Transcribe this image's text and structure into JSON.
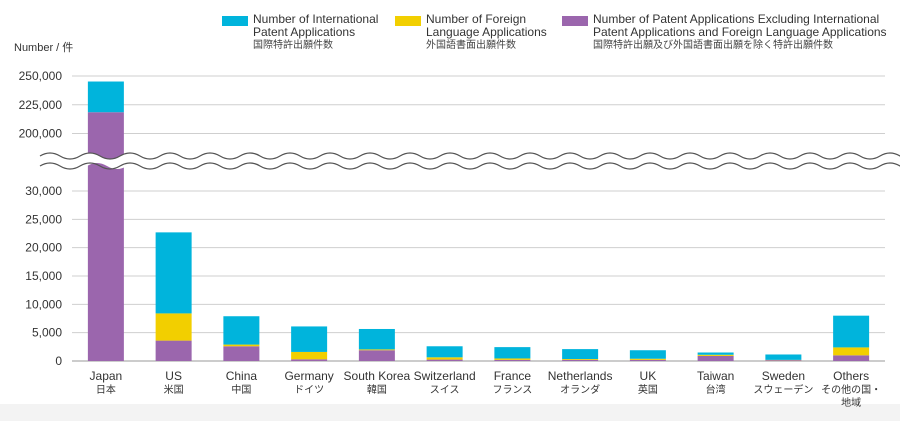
{
  "chart_data": {
    "type": "bar",
    "stacked": true,
    "y_unit_label": "Number / 件",
    "categories": [
      {
        "en": "Japan",
        "jp": "日本"
      },
      {
        "en": "US",
        "jp": "米国"
      },
      {
        "en": "China",
        "jp": "中国"
      },
      {
        "en": "Germany",
        "jp": "ドイツ"
      },
      {
        "en": "South Korea",
        "jp": "韓国"
      },
      {
        "en": "Switzerland",
        "jp": "スイス"
      },
      {
        "en": "France",
        "jp": "フランス"
      },
      {
        "en": "Netherlands",
        "jp": "オランダ"
      },
      {
        "en": "UK",
        "jp": "英国"
      },
      {
        "en": "Taiwan",
        "jp": "台湾"
      },
      {
        "en": "Sweden",
        "jp": "スウェーデン"
      },
      {
        "en": "Others",
        "jp": "その他の国・",
        "jp2": "地域"
      }
    ],
    "series": [
      {
        "key": "excluding",
        "name": "Number of Patent Applications Excluding International Patent Applications and Foreign Language Applications",
        "name_lines": [
          "Number of Patent Applications Excluding International",
          "Patent Applications and Foreign Language Applications"
        ],
        "name_jp": "国際特許出願及び外国語書面出願を除く特許出願件数",
        "color": "#9b66ad",
        "values": [
          218500,
          3600,
          2600,
          300,
          1900,
          250,
          200,
          200,
          200,
          900,
          150,
          1000
        ]
      },
      {
        "key": "foreign",
        "name": "Number of Foreign Language Applications",
        "name_lines": [
          "Number of Foreign",
          "Language Applications"
        ],
        "name_jp": "外国語書面出願件数",
        "color": "#f2cf00",
        "values": [
          0,
          4800,
          300,
          1300,
          150,
          400,
          250,
          150,
          200,
          200,
          50,
          1400
        ]
      },
      {
        "key": "international",
        "name": "Number of International Patent Applications",
        "name_lines": [
          "Number of International",
          "Patent Applications"
        ],
        "name_jp": "国際特許出願件数",
        "color": "#00b4dc",
        "values": [
          26700,
          14300,
          5000,
          4500,
          3600,
          1950,
          2000,
          1750,
          1500,
          400,
          950,
          5600
        ]
      }
    ],
    "y_ticks_lower": [
      "0",
      "5,000",
      "10,000",
      "15,000",
      "20,000",
      "25,000",
      "30,000"
    ],
    "y_ticks_upper": [
      "200,000",
      "225,000",
      "250,000"
    ],
    "ylim_lower": [
      0,
      30000
    ],
    "ylim_upper": [
      200000,
      250000
    ],
    "axis_break": "between 30,000 and 200,000",
    "grid": true,
    "legend_position": "top-right"
  }
}
